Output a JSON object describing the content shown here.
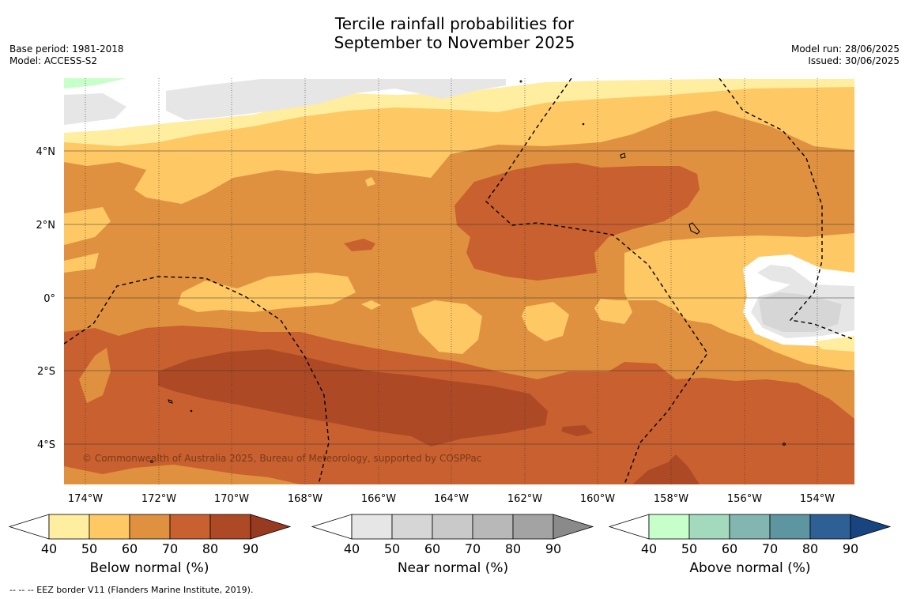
{
  "title_line1": "Tercile rainfall probabilities for",
  "title_line2": "September to November 2025",
  "base_period": "Base period: 1981-2018",
  "model": "Model: ACCESS-S2",
  "model_run": "Model run: 28/06/2025",
  "issued": "Issued: 30/06/2025",
  "copyright": "© Commonwealth of Australia 2025, Bureau of Meteorology, supported by COSPPac",
  "lat_labels": [
    "4°N",
    "2°N",
    "0°",
    "2°S",
    "4°S"
  ],
  "lon_labels": [
    "174°W",
    "172°W",
    "170°W",
    "168°W",
    "166°W",
    "164°W",
    "162°W",
    "160°W",
    "158°W",
    "156°W",
    "154°W"
  ],
  "legends": [
    {
      "label": "Below normal (%)",
      "ticks": [
        "40",
        "50",
        "60",
        "70",
        "80",
        "90"
      ],
      "colors": [
        "#ffffff",
        "#ffeda0",
        "#fec965",
        "#e0913f",
        "#c9602f",
        "#ad4a25",
        "#983a20"
      ]
    },
    {
      "label": "Near normal (%)",
      "ticks": [
        "40",
        "50",
        "60",
        "70",
        "80",
        "90"
      ],
      "colors": [
        "#ffffff",
        "#e6e6e6",
        "#d6d6d6",
        "#c9c9c9",
        "#b8b8b8",
        "#a3a3a3",
        "#8a8a8a"
      ]
    },
    {
      "label": "Above normal (%)",
      "ticks": [
        "40",
        "50",
        "60",
        "70",
        "80",
        "90"
      ],
      "colors": [
        "#ffffff",
        "#c7ffcb",
        "#a3d9bc",
        "#84b6b1",
        "#5d95a0",
        "#2e6096",
        "#18457f"
      ]
    }
  ],
  "footnote": "--  --  -- EEZ border V11 (Flanders Marine Institute, 2019)."
}
